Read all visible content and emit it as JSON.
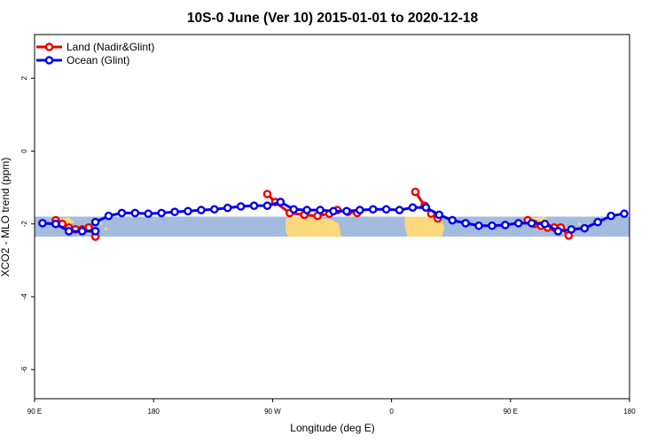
{
  "chart_data": {
    "type": "line",
    "title": "10S-0 June (Ver 10)   2015-01-01 to 2020-12-18",
    "xlabel": "Longitude (deg E)",
    "ylabel": "XCO2 - MLO trend (ppm)",
    "xlim": [
      90,
      540
    ],
    "ylim": [
      -6.8,
      3.2
    ],
    "x_ticks": [
      {
        "value": 90,
        "label": "90 E"
      },
      {
        "value": 180,
        "label": "180"
      },
      {
        "value": 270,
        "label": "90 W"
      },
      {
        "value": 360,
        "label": "0"
      },
      {
        "value": 450,
        "label": "90 E"
      },
      {
        "value": 540,
        "label": "180"
      }
    ],
    "y_ticks": [
      {
        "value": 2,
        "label": "2"
      },
      {
        "value": 0,
        "label": "0"
      },
      {
        "value": -2,
        "label": "-2"
      },
      {
        "value": -4,
        "label": "-4"
      },
      {
        "value": -6,
        "label": "-6"
      }
    ],
    "legend_position": "top-left",
    "band": {
      "ymin": -2.35,
      "ymax": -1.8,
      "color": "#a3bcdd"
    },
    "land_color": "#fbd97c",
    "series": [
      {
        "name": "Land (Nadir&Glint)",
        "color": "#ee0000",
        "segments": [
          {
            "x": [
              106,
              111,
              116,
              121,
              126,
              131,
              136
            ],
            "y": [
              -1.9,
              -2.0,
              -2.1,
              -2.15,
              -2.15,
              -2.1,
              -2.35
            ]
          },
          {
            "x": [
              266,
              272,
              283,
              294,
              304,
              313,
              319,
              327,
              334
            ],
            "y": [
              -1.18,
              -1.4,
              -1.7,
              -1.75,
              -1.78,
              -1.72,
              -1.62,
              -1.67,
              -1.7
            ]
          },
          {
            "x": [
              378,
              385,
              390,
              395
            ],
            "y": [
              -1.12,
              -1.5,
              -1.72,
              -1.85
            ]
          },
          {
            "x": [
              463,
              468,
              473,
              478,
              483,
              488,
              494
            ],
            "y": [
              -1.9,
              -2.0,
              -2.05,
              -2.1,
              -2.1,
              -2.1,
              -2.32
            ]
          }
        ]
      },
      {
        "name": "Ocean (Glint)",
        "color": "#0000ee",
        "segments": [
          {
            "x": [
              96,
              106,
              116,
              126,
              136
            ],
            "y": [
              -1.98,
              -2.0,
              -2.2,
              -2.2,
              -2.2
            ]
          },
          {
            "x": [
              136,
              146,
              156,
              166,
              176,
              186,
              196,
              206,
              216,
              226,
              236,
              246,
              256,
              266,
              276
            ],
            "y": [
              -1.95,
              -1.78,
              -1.7,
              -1.7,
              -1.72,
              -1.7,
              -1.67,
              -1.65,
              -1.62,
              -1.6,
              -1.56,
              -1.52,
              -1.5,
              -1.5,
              -1.4
            ]
          },
          {
            "x": [
              276,
              286,
              296,
              306,
              316,
              326,
              336,
              346,
              356,
              366,
              376,
              386,
              396,
              406,
              416,
              426,
              436,
              446,
              456,
              466,
              476,
              486,
              496,
              506,
              516,
              526,
              536
            ],
            "y": [
              -1.4,
              -1.6,
              -1.62,
              -1.62,
              -1.65,
              -1.65,
              -1.62,
              -1.6,
              -1.6,
              -1.62,
              -1.55,
              -1.55,
              -1.75,
              -1.9,
              -1.98,
              -2.05,
              -2.05,
              -2.03,
              -1.98,
              -1.98,
              -2.0,
              -2.2,
              -2.15,
              -2.12,
              -1.95,
              -1.78,
              -1.72
            ]
          }
        ]
      }
    ]
  }
}
